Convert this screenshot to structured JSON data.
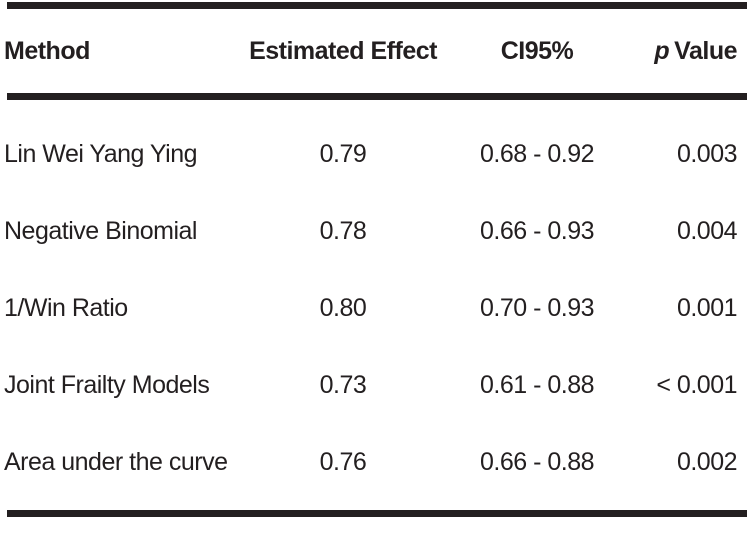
{
  "colors": {
    "ink": "#231f20",
    "background": "#ffffff"
  },
  "table": {
    "header": {
      "method": "Method",
      "effect": "Estimated Effect",
      "ci": "CI95%",
      "p_italic": "p",
      "p_rest": "Value"
    },
    "rows": [
      {
        "method": "Lin Wei Yang Ying",
        "effect": "0.79",
        "ci": "0.68 - 0.92",
        "p": "0.003"
      },
      {
        "method": "Negative Binomial",
        "effect": "0.78",
        "ci": "0.66 - 0.93",
        "p": "0.004"
      },
      {
        "method": "1/Win Ratio",
        "effect": "0.80",
        "ci": "0.70 - 0.93",
        "p": "0.001"
      },
      {
        "method": "Joint Frailty Models",
        "effect": "0.73",
        "ci": "0.61 - 0.88",
        "p": "< 0.001"
      },
      {
        "method": "Area under the curve",
        "effect": "0.76",
        "ci": "0.66 - 0.88",
        "p": "0.002"
      }
    ]
  }
}
